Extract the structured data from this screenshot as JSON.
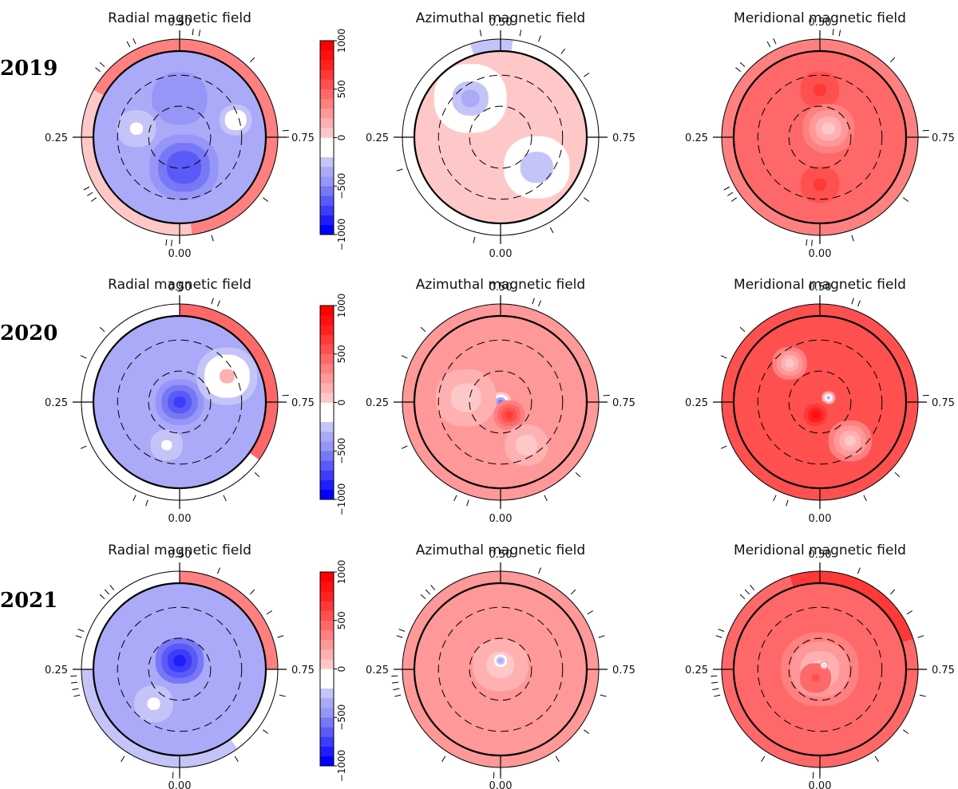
{
  "chart_data": {
    "type": "heatmap",
    "projection": "polar",
    "rows": [
      {
        "year": "2019",
        "phase_tick_sets": [
          [
            0.012,
            0.02,
            0.15,
            0.16,
            0.17,
            0.36,
            0.37,
            0.42,
            0.43,
            0.52,
            0.53,
            0.62,
            0.74,
            0.75,
            0.85,
            0.95
          ],
          [
            0.04,
            0.2,
            0.47,
            0.53,
            0.56,
            0.6,
            0.65,
            0.85,
            0.92
          ],
          [
            0.012,
            0.02,
            0.15,
            0.16,
            0.17,
            0.36,
            0.37,
            0.42,
            0.43,
            0.52,
            0.53,
            0.62,
            0.74,
            0.75,
            0.85,
            0.95
          ]
        ]
      },
      {
        "year": "2020",
        "phase_tick_sets": [
          [
            0.05,
            0.07,
            0.18,
            0.32,
            0.37,
            0.55,
            0.56,
            0.74,
            0.87,
            0.93
          ],
          [
            0.05,
            0.07,
            0.18,
            0.32,
            0.37,
            0.55,
            0.56,
            0.74,
            0.87,
            0.93
          ],
          [
            0.05,
            0.07,
            0.18,
            0.32,
            0.37,
            0.55,
            0.56,
            0.74,
            0.87,
            0.93
          ]
        ]
      },
      {
        "year": "2021",
        "phase_tick_sets": [
          [
            0.0,
            0.01,
            0.09,
            0.21,
            0.22,
            0.23,
            0.24,
            0.3,
            0.31,
            0.37,
            0.38,
            0.39,
            0.56,
            0.62,
            0.66,
            0.7,
            0.79,
            0.85,
            0.91
          ],
          [
            0.0,
            0.01,
            0.09,
            0.21,
            0.22,
            0.23,
            0.24,
            0.3,
            0.31,
            0.37,
            0.38,
            0.39,
            0.56,
            0.62,
            0.66,
            0.7,
            0.79,
            0.85,
            0.91
          ],
          [
            0.0,
            0.01,
            0.09,
            0.21,
            0.22,
            0.23,
            0.24,
            0.3,
            0.31,
            0.37,
            0.38,
            0.39,
            0.56,
            0.62,
            0.66,
            0.7,
            0.79,
            0.85,
            0.91
          ]
        ]
      }
    ],
    "columns": [
      "Radial magnetic field",
      "Azimuthal magnetic field",
      "Meridional magnetic field"
    ],
    "phase_labels": {
      "top": "0.50",
      "left": "0.25",
      "right": "0.75",
      "bottom": "0.00"
    },
    "colorbar": {
      "range": [
        -1000,
        1000
      ],
      "levels": [
        -1000,
        -900,
        -800,
        -700,
        -600,
        -500,
        -400,
        -300,
        -200,
        -100,
        0,
        100,
        200,
        300,
        400,
        500,
        600,
        700,
        800,
        900,
        1000
      ],
      "tick_labels": [
        "1000",
        "500",
        "0",
        "−500",
        "−1000"
      ],
      "tick_values": [
        1000,
        500,
        0,
        -500,
        -1000
      ],
      "colors_low_to_high": [
        "#0000ff",
        "#1e1efd",
        "#3c3cfa",
        "#5a5af8",
        "#7878f6",
        "#9696f8",
        "#aaaaf8",
        "#c4c4f8",
        "#ffffff",
        "#ffffff",
        "#ffc8c8",
        "#ffb0b0",
        "#ff9898",
        "#ff8080",
        "#ff6868",
        "#ff5050",
        "#ff3838",
        "#ff2020",
        "#ff1010",
        "#ff0000"
      ]
    },
    "maps": [
      [
        {
          "base": -400,
          "outer_ring": [
            {
              "from": 0.33,
              "to": 0.98,
              "value": 300
            },
            {
              "from": 0.98,
              "to": 0.33,
              "value": 0
            }
          ],
          "blobs": [
            {
              "x": 0.05,
              "y": -0.35,
              "r": 0.4,
              "value": -700
            },
            {
              "x": 0.0,
              "y": 0.45,
              "r": 0.32,
              "value": -500
            },
            {
              "x": -0.5,
              "y": 0.1,
              "r": 0.3,
              "value": -200
            },
            {
              "x": 0.65,
              "y": 0.2,
              "r": 0.25,
              "value": -100
            }
          ]
        },
        {
          "base": 0,
          "outer_ring": [
            {
              "from": 0.45,
              "to": 0.52,
              "value": -300
            }
          ],
          "blobs": [
            {
              "x": -0.35,
              "y": 0.45,
              "r": 0.42,
              "value": -400
            },
            {
              "x": 0.42,
              "y": -0.35,
              "r": 0.38,
              "value": -300
            }
          ]
        },
        {
          "base": 400,
          "outer_ring": [
            {
              "from": 0.0,
              "to": 1.0,
              "value": 300
            }
          ],
          "blobs": [
            {
              "x": 0.0,
              "y": 0.55,
              "r": 0.3,
              "value": 600
            },
            {
              "x": 0.0,
              "y": -0.55,
              "r": 0.3,
              "value": 600
            },
            {
              "x": 0.1,
              "y": 0.1,
              "r": 0.3,
              "value": 0
            }
          ]
        }
      ],
      [
        {
          "base": -400,
          "outer_ring": [
            {
              "from": 0.5,
              "to": 0.85,
              "value": 400
            }
          ],
          "blobs": [
            {
              "x": 0.0,
              "y": 0.0,
              "r": 0.28,
              "value": -800
            },
            {
              "x": 0.55,
              "y": 0.3,
              "r": 0.35,
              "value": 100
            },
            {
              "x": -0.15,
              "y": -0.5,
              "r": 0.25,
              "value": -200
            }
          ]
        },
        {
          "base": 200,
          "outer_ring": [
            {
              "from": 0.0,
              "to": 1.0,
              "value": 200
            }
          ],
          "blobs": [
            {
              "x": 0.0,
              "y": 0.0,
              "r": 0.12,
              "value": -600
            },
            {
              "x": 0.1,
              "y": -0.15,
              "r": 0.18,
              "value": 600
            },
            {
              "x": -0.4,
              "y": 0.05,
              "r": 0.35,
              "value": 0
            },
            {
              "x": 0.3,
              "y": -0.5,
              "r": 0.25,
              "value": 0
            }
          ]
        },
        {
          "base": 500,
          "outer_ring": [
            {
              "from": 0.0,
              "to": 1.0,
              "value": 500
            }
          ],
          "blobs": [
            {
              "x": 0.1,
              "y": 0.05,
              "r": 0.08,
              "value": -400
            },
            {
              "x": -0.05,
              "y": -0.15,
              "r": 0.18,
              "value": 800
            },
            {
              "x": 0.35,
              "y": -0.45,
              "r": 0.25,
              "value": 0
            },
            {
              "x": -0.35,
              "y": 0.45,
              "r": 0.2,
              "value": 0
            }
          ]
        }
      ],
      [
        {
          "base": -400,
          "outer_ring": [
            {
              "from": 0.5,
              "to": 0.75,
              "value": 300
            },
            {
              "from": 0.9,
              "to": 0.25,
              "value": -300
            }
          ],
          "blobs": [
            {
              "x": 0.0,
              "y": 0.1,
              "r": 0.28,
              "value": -900
            },
            {
              "x": -0.3,
              "y": -0.4,
              "r": 0.3,
              "value": -200
            }
          ]
        },
        {
          "base": 200,
          "outer_ring": [
            {
              "from": 0.0,
              "to": 1.0,
              "value": 200
            }
          ],
          "blobs": [
            {
              "x": 0.0,
              "y": 0.05,
              "r": 0.32,
              "value": 0
            },
            {
              "x": 0.0,
              "y": 0.1,
              "r": 0.1,
              "value": -400
            }
          ]
        },
        {
          "base": 400,
          "outer_ring": [
            {
              "from": 0.45,
              "to": 0.7,
              "value": 600
            },
            {
              "from": 0.7,
              "to": 0.45,
              "value": 400
            }
          ],
          "blobs": [
            {
              "x": 0.0,
              "y": 0.0,
              "r": 0.45,
              "value": 0
            },
            {
              "x": -0.05,
              "y": -0.1,
              "r": 0.18,
              "value": 500
            },
            {
              "x": 0.05,
              "y": 0.05,
              "r": 0.05,
              "value": -300
            }
          ]
        }
      ]
    ]
  }
}
